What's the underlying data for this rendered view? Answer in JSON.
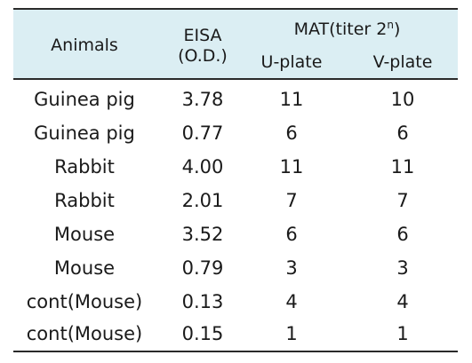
{
  "table": {
    "headers": {
      "animals": "Animals",
      "eisa_line1": "EISA",
      "eisa_line2": "(O.D.)",
      "mat_prefix": "MAT(titer  2",
      "mat_sup": "n",
      "mat_suffix": ")",
      "u_plate": "U-plate",
      "v_plate": "V-plate"
    },
    "rows": [
      {
        "animal": "Guinea  pig",
        "eisa": "3.78",
        "u": "11",
        "v": "10"
      },
      {
        "animal": "Guinea  pig",
        "eisa": "0.77",
        "u": "6",
        "v": "6"
      },
      {
        "animal": "Rabbit",
        "eisa": "4.00",
        "u": "11",
        "v": "11"
      },
      {
        "animal": "Rabbit",
        "eisa": "2.01",
        "u": "7",
        "v": "7"
      },
      {
        "animal": "Mouse",
        "eisa": "3.52",
        "u": "6",
        "v": "6"
      },
      {
        "animal": "Mouse",
        "eisa": "0.79",
        "u": "3",
        "v": "3"
      },
      {
        "animal": "cont(Mouse)",
        "eisa": "0.13",
        "u": "4",
        "v": "4"
      },
      {
        "animal": "cont(Mouse)",
        "eisa": "0.15",
        "u": "1",
        "v": "1"
      }
    ]
  }
}
